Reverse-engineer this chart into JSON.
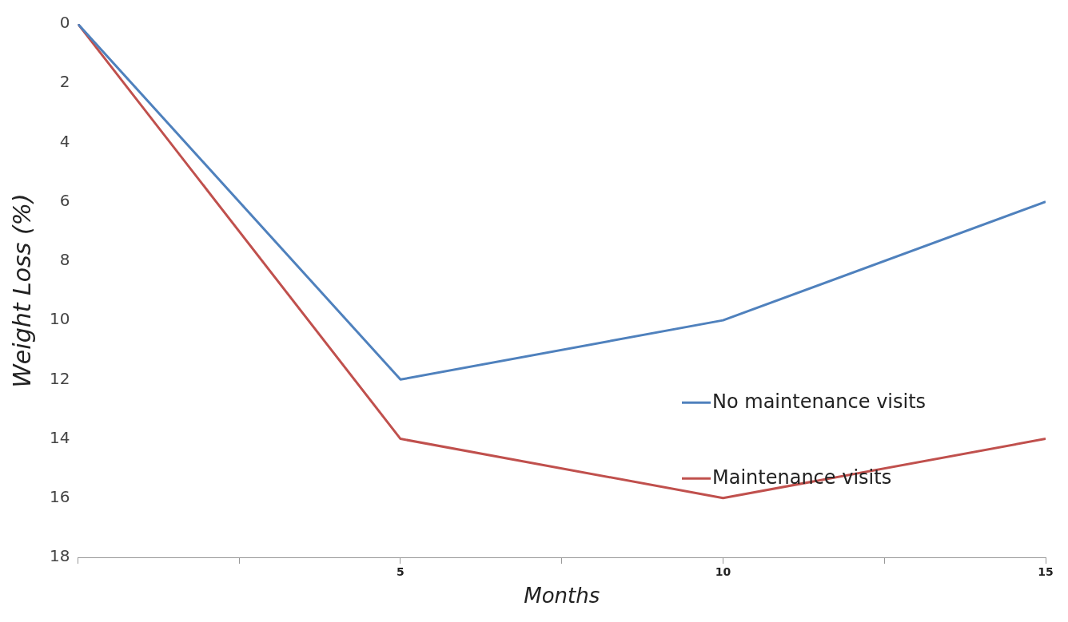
{
  "chart_data": {
    "type": "line",
    "xlabel": "Months",
    "ylabel": "Weight Loss (%)",
    "x": [
      0,
      5,
      10,
      15
    ],
    "series": [
      {
        "name": "No maintenance visits",
        "color": "#4f81bd",
        "values": [
          0,
          12,
          10,
          6
        ]
      },
      {
        "name": "Maintenance visits",
        "color": "#c0504d",
        "values": [
          0,
          14,
          16,
          14
        ]
      }
    ],
    "xlim": [
      0,
      15
    ],
    "xticks": [
      {
        "value": 0,
        "label": null
      },
      {
        "value": 2.5,
        "label": null
      },
      5,
      {
        "value": 7.5,
        "label": null
      },
      10,
      {
        "value": 12.5,
        "label": null
      },
      15
    ],
    "ylim": [
      18,
      0
    ],
    "yticks": [
      0,
      2,
      4,
      6,
      8,
      10,
      12,
      14,
      16,
      18
    ],
    "grid": false,
    "legend": "right",
    "marker": "none",
    "line_style": "solid"
  }
}
